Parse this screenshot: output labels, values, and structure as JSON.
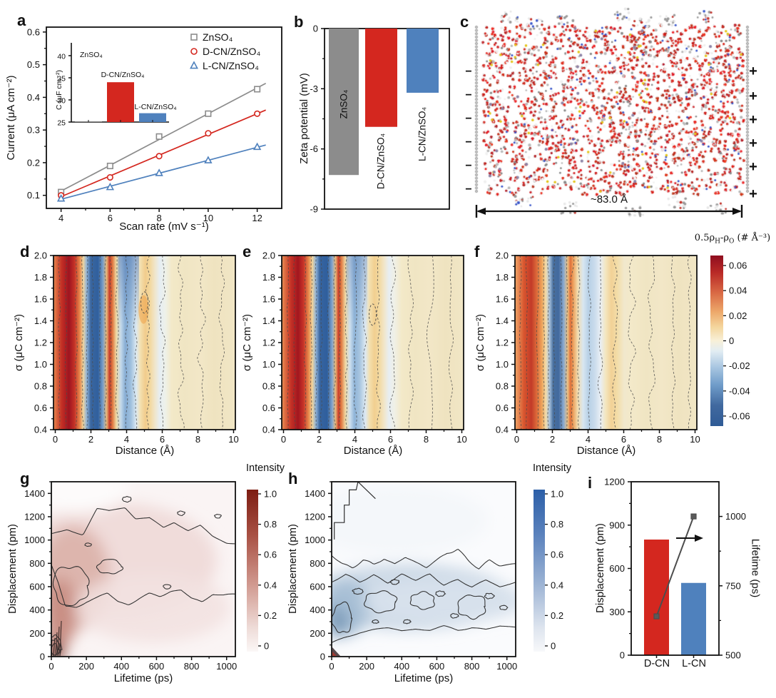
{
  "panel_labels": {
    "a": "a",
    "b": "b",
    "c": "c",
    "d": "d",
    "e": "e",
    "f": "f",
    "g": "g",
    "h": "h",
    "i": "i"
  },
  "colors": {
    "gray": "#8c8c8c",
    "red": "#d4271f",
    "blue": "#4f81bd",
    "contour_line": "#4a4a4a",
    "density_line": "#2f2f2f"
  },
  "panel_c": {
    "width_label": "~83.0 Å",
    "minus_sign": "−",
    "plus_sign": "+",
    "minus_count": 6,
    "plus_count": 6,
    "description": "Molecular-dynamics snapshot of aqueous electrolyte (water, Zn2+, SO42-, additive molecules) confined between a negative electrode (left) and a positive electrode (right), box width ~83.0 Å"
  },
  "def_colorbar": {
    "title_parts": {
      "p1": "0.5ρ",
      "s1": "H",
      "p2": "-ρ",
      "s2": "O",
      "p3": " (# Å⁻³)"
    },
    "ticks": [
      0.06,
      0.04,
      0.02,
      0,
      -0.02,
      -0.04,
      -0.06
    ],
    "vlim": [
      -0.068,
      0.068
    ],
    "stops": [
      [
        0,
        "#8f0e1f"
      ],
      [
        0.1,
        "#b92a26"
      ],
      [
        0.22,
        "#d96a45"
      ],
      [
        0.33,
        "#eda86a"
      ],
      [
        0.42,
        "#f4d69e"
      ],
      [
        0.5,
        "#f8f0d8"
      ],
      [
        0.56,
        "#e2edf3"
      ],
      [
        0.65,
        "#abc8e2"
      ],
      [
        0.76,
        "#6f9cc9"
      ],
      [
        0.88,
        "#41699f"
      ],
      [
        1,
        "#2f5b96"
      ]
    ]
  },
  "chart_data": [
    {
      "id": "a",
      "type": "scatter",
      "xlabel": "Scan rate (mV s⁻¹)",
      "ylabel": "Current (μA cm⁻²)",
      "xlim": [
        3.4,
        13
      ],
      "ylim": [
        0.06,
        0.615
      ],
      "xticks": [
        4,
        6,
        8,
        10,
        12
      ],
      "yticks": [
        0.1,
        0.2,
        0.3,
        0.4,
        0.5,
        0.6
      ],
      "x": [
        4,
        6,
        8,
        10,
        12
      ],
      "series": [
        {
          "name": "ZnSO₄",
          "marker": "square",
          "color": "#8c8c8c",
          "values": [
            0.11,
            0.19,
            0.28,
            0.35,
            0.425
          ]
        },
        {
          "name": "D-CN/ZnSO₄",
          "marker": "circle",
          "color": "#d4271f",
          "values": [
            0.1,
            0.155,
            0.22,
            0.29,
            0.35
          ]
        },
        {
          "name": "L-CN/ZnSO₄",
          "marker": "triangle",
          "color": "#4f81bd",
          "values": [
            0.09,
            0.125,
            0.168,
            0.207,
            0.248
          ]
        }
      ],
      "fit_lines": true
    },
    {
      "id": "a-inset",
      "type": "bar",
      "ylabel": "C (μF cm⁻²)",
      "ylim": [
        25,
        42.9
      ],
      "yticks": [
        25,
        30,
        35,
        40
      ],
      "bars": [
        {
          "name": "ZnSO₄",
          "value": 25.1,
          "color": "#8c8c8c"
        },
        {
          "name": "D-CN/ZnSO₄",
          "value": 34,
          "color": "#d4271f"
        },
        {
          "name": "L-CN/ZnSO₄",
          "value": 27,
          "color": "#4f81bd"
        }
      ]
    },
    {
      "id": "b",
      "type": "bar",
      "ylabel": "Zeta potential (mV)",
      "ylim": [
        -9,
        0
      ],
      "yticks": [
        0,
        -3,
        -6,
        -9
      ],
      "bars": [
        {
          "name": "ZnSO₄",
          "value": -7.3,
          "color": "#8c8c8c"
        },
        {
          "name": "D-CN/ZnSO₄",
          "value": -4.9,
          "color": "#d4271f"
        },
        {
          "name": "L-CN/ZnSO₄",
          "value": -3.2,
          "color": "#4f81bd"
        }
      ]
    },
    {
      "id": "d",
      "type": "contour-heatmap",
      "xlabel": "Distance (Å)",
      "ylabel": "σ (μC cm⁻²)",
      "xlim": [
        0,
        10
      ],
      "ylim": [
        0.4,
        2.0
      ],
      "xticks": [
        0,
        2,
        4,
        6,
        8,
        10
      ],
      "yticks": [
        0.4,
        0.6,
        0.8,
        1.0,
        1.2,
        1.4,
        1.6,
        1.8,
        2.0
      ],
      "description": "0.5ρH-ρO map for ZnSO4: strong positive (red) band at ~1 Å, strong negative (blue) band at ~2 Å, positive band at ~3 Å, negative band at ~4 Å fading with distance to weak positive background",
      "profile_stops": [
        [
          0,
          "#e8884e"
        ],
        [
          0.045,
          "#c32f25"
        ],
        [
          0.085,
          "#9e1420"
        ],
        [
          0.115,
          "#c43127"
        ],
        [
          0.145,
          "#e8894c"
        ],
        [
          0.163,
          "#f0d59e"
        ],
        [
          0.183,
          "#8fb2d7"
        ],
        [
          0.205,
          "#3a669f"
        ],
        [
          0.245,
          "#30609e"
        ],
        [
          0.272,
          "#7ba0ca"
        ],
        [
          0.292,
          "#e9b97a"
        ],
        [
          0.308,
          "#c63a28"
        ],
        [
          0.325,
          "#e07a42"
        ],
        [
          0.345,
          "#f0d8a2"
        ],
        [
          0.37,
          "#c5daeb"
        ],
        [
          0.395,
          "#87add4"
        ],
        [
          0.425,
          "#9fc0de"
        ],
        [
          0.455,
          "#dce9f2"
        ],
        [
          0.478,
          "#f3e0b0"
        ],
        [
          0.505,
          "#f1cc8c"
        ],
        [
          0.53,
          "#f3d89e"
        ],
        [
          0.558,
          "#f0e6cb"
        ],
        [
          0.585,
          "#e6eef3"
        ],
        [
          0.615,
          "#eef1e9"
        ],
        [
          0.65,
          "#f3e9c8"
        ],
        [
          0.72,
          "#f0e5c3"
        ],
        [
          0.8,
          "#f2e7c7"
        ],
        [
          0.88,
          "#efe3c0"
        ],
        [
          1,
          "#f1e6c5"
        ]
      ]
    },
    {
      "id": "e",
      "type": "contour-heatmap",
      "xlabel": "Distance (Å)",
      "ylabel": "σ (μC cm⁻²)",
      "xlim": [
        0,
        10
      ],
      "ylim": [
        0.4,
        2.0
      ],
      "xticks": [
        0,
        2,
        4,
        6,
        8,
        10
      ],
      "yticks": [
        0.4,
        0.6,
        0.8,
        1.0,
        1.2,
        1.4,
        1.6,
        1.8,
        2.0
      ],
      "description": "0.5ρH-ρO map for D-CN/ZnSO4: same alternating band structure, slightly weaker than ZnSO4",
      "profile_stops": [
        [
          0,
          "#e98e52"
        ],
        [
          0.05,
          "#c53226"
        ],
        [
          0.09,
          "#a2161f"
        ],
        [
          0.12,
          "#c83428"
        ],
        [
          0.15,
          "#ea9150"
        ],
        [
          0.168,
          "#f0d49c"
        ],
        [
          0.188,
          "#8fb2d7"
        ],
        [
          0.21,
          "#37649f"
        ],
        [
          0.25,
          "#2f5f9d"
        ],
        [
          0.278,
          "#86a7ce"
        ],
        [
          0.296,
          "#eaba7b"
        ],
        [
          0.312,
          "#c93c28"
        ],
        [
          0.328,
          "#e17c43"
        ],
        [
          0.35,
          "#f0d8a2"
        ],
        [
          0.375,
          "#cfe0ee"
        ],
        [
          0.4,
          "#8fb4d8"
        ],
        [
          0.43,
          "#a9c6e0"
        ],
        [
          0.46,
          "#dde9f2"
        ],
        [
          0.483,
          "#f3dfae"
        ],
        [
          0.51,
          "#f2cf90"
        ],
        [
          0.535,
          "#f3d9a0"
        ],
        [
          0.565,
          "#f1e7cc"
        ],
        [
          0.59,
          "#e7eef3"
        ],
        [
          0.62,
          "#f0f0e6"
        ],
        [
          0.66,
          "#f3e9c8"
        ],
        [
          0.73,
          "#f0e5c3"
        ],
        [
          0.81,
          "#f2e7c7"
        ],
        [
          0.9,
          "#efe3c0"
        ],
        [
          1,
          "#f1e6c5"
        ]
      ]
    },
    {
      "id": "f",
      "type": "contour-heatmap",
      "xlabel": "Distance (Å)",
      "ylabel": "σ (μC cm⁻²)",
      "xlim": [
        0,
        10
      ],
      "ylim": [
        0.4,
        2.0
      ],
      "xticks": [
        0,
        2,
        4,
        6,
        8,
        10
      ],
      "yticks": [
        0.4,
        0.6,
        0.8,
        1.0,
        1.2,
        1.4,
        1.6,
        1.8,
        2.0
      ],
      "description": "0.5ρH-ρO map for L-CN/ZnSO4: weakest band contrast; orange-red band at ~1 Å, narrow blue band at ~2 Å, faint bands beyond",
      "profile_stops": [
        [
          0,
          "#f0a668"
        ],
        [
          0.05,
          "#d8552e"
        ],
        [
          0.09,
          "#c33b28"
        ],
        [
          0.12,
          "#dd6b3a"
        ],
        [
          0.15,
          "#efa95f"
        ],
        [
          0.17,
          "#f2dcab"
        ],
        [
          0.19,
          "#a9c2dd"
        ],
        [
          0.21,
          "#48709f"
        ],
        [
          0.24,
          "#42699e"
        ],
        [
          0.268,
          "#8cabd0"
        ],
        [
          0.29,
          "#ecc183"
        ],
        [
          0.305,
          "#e0703a"
        ],
        [
          0.32,
          "#eda05c"
        ],
        [
          0.345,
          "#f2dcae"
        ],
        [
          0.375,
          "#d8e6f1"
        ],
        [
          0.405,
          "#b7d0e6"
        ],
        [
          0.44,
          "#cbdcec"
        ],
        [
          0.47,
          "#e9eff5"
        ],
        [
          0.5,
          "#f3e5bd"
        ],
        [
          0.53,
          "#f2d196"
        ],
        [
          0.56,
          "#f3dca6"
        ],
        [
          0.6,
          "#f1e8cc"
        ],
        [
          0.64,
          "#f3e9c9"
        ],
        [
          0.72,
          "#f0e5c3"
        ],
        [
          0.81,
          "#f2e7c7"
        ],
        [
          0.9,
          "#efe3c0"
        ],
        [
          1,
          "#f1e6c5"
        ]
      ]
    },
    {
      "id": "g",
      "type": "density-contour",
      "xlabel": "Lifetime (ps)",
      "ylabel": "Displacement (pm)",
      "xlim": [
        0,
        1050
      ],
      "ylim": [
        0,
        1500
      ],
      "xticks": [
        0,
        200,
        400,
        600,
        800,
        1000
      ],
      "yticks": [
        0,
        200,
        400,
        600,
        800,
        1000,
        1200,
        1400
      ],
      "colorbar": {
        "title": "Intensity",
        "ticks": [
          1.0,
          0.8,
          0.6,
          0.4,
          0.2,
          0
        ],
        "stops": [
          [
            0,
            "#7d1d12"
          ],
          [
            0.28,
            "#a85043"
          ],
          [
            0.58,
            "#d0988e"
          ],
          [
            0.85,
            "#eedbd7"
          ],
          [
            1,
            "#fbf7f6"
          ]
        ]
      },
      "description": "D-CN interfacial water: broad weak red density band spanning ~300-1250 pm over all lifetimes, densest near the origin (short lifetime, small displacement)"
    },
    {
      "id": "h",
      "type": "density-contour",
      "xlabel": "Lifetime (ps)",
      "ylabel": "Displacement (pm)",
      "xlim": [
        0,
        1050
      ],
      "ylim": [
        0,
        1500
      ],
      "xticks": [
        0,
        200,
        400,
        600,
        800,
        1000
      ],
      "yticks": [
        0,
        200,
        400,
        600,
        800,
        1000,
        1200,
        1400
      ],
      "colorbar": {
        "title": "Intensity",
        "ticks": [
          1.0,
          0.8,
          0.6,
          0.4,
          0.2,
          0
        ],
        "stops": [
          [
            0,
            "#2c5fa8"
          ],
          [
            0.28,
            "#5b82bd"
          ],
          [
            0.58,
            "#9cb3d4"
          ],
          [
            0.85,
            "#dde4ee"
          ],
          [
            1,
            "#f7f8fa"
          ]
        ]
      },
      "description": "L-CN interfacial water: blue density band concentrated between ~200-800 pm across all lifetimes, densest at short lifetimes near ~300-400 pm"
    },
    {
      "id": "i",
      "type": "bar-line",
      "categories": [
        "D-CN",
        "L-CN"
      ],
      "ylabel_left": "Displacement (pm)",
      "ylabel_right": "Lifetime (ps)",
      "ylim_left": [
        0,
        1200
      ],
      "yticks_left": [
        0,
        300,
        600,
        900,
        1200
      ],
      "ylim_right": [
        500,
        1125
      ],
      "yticks_right": [
        500,
        750,
        1000
      ],
      "bars": {
        "name": "Displacement (pm)",
        "values": [
          800,
          500
        ],
        "colors": [
          "#d4271f",
          "#4f81bd"
        ]
      },
      "line": {
        "name": "Lifetime (ps)",
        "values": [
          640,
          1000
        ],
        "color": "#4d4d4d",
        "marker": "square"
      }
    }
  ]
}
